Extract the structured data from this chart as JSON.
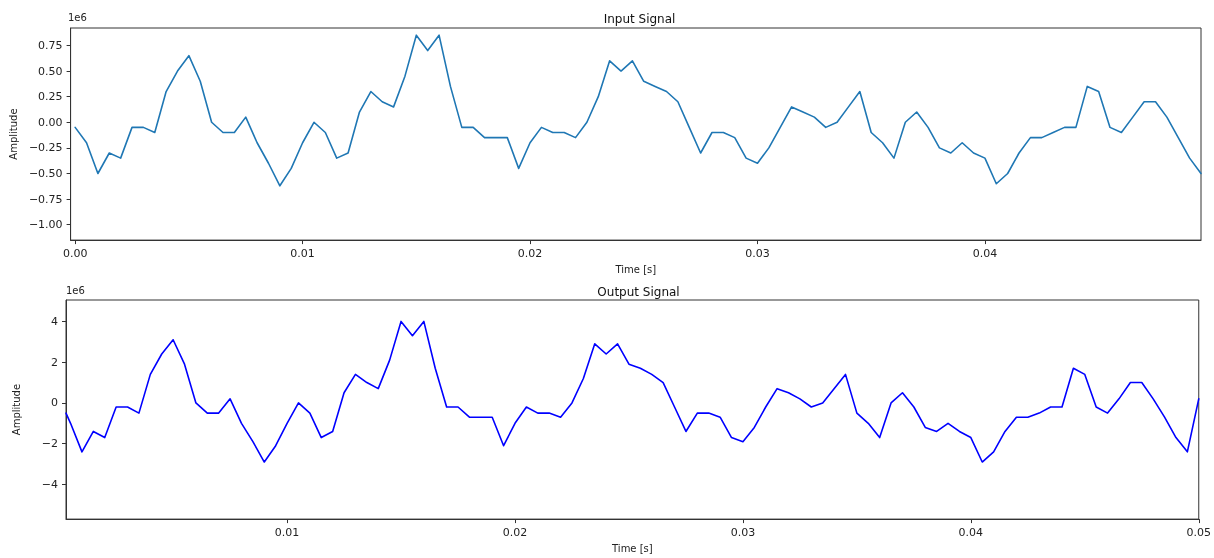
{
  "chart_data": [
    {
      "type": "line",
      "title": "Input Signal",
      "xlabel": "Time [s]",
      "ylabel": "Amplitude",
      "annotations": [
        "1e6"
      ],
      "x": [
        0,
        0.0005,
        0.001,
        0.0015,
        0.002,
        0.0025,
        0.003,
        0.0035,
        0.004,
        0.0045,
        0.005,
        0.0055,
        0.006,
        0.0065,
        0.007,
        0.0075,
        0.008,
        0.0085,
        0.009,
        0.0095,
        0.01,
        0.0105,
        0.011,
        0.0115,
        0.012,
        0.0125,
        0.013,
        0.0135,
        0.014,
        0.0145,
        0.015,
        0.0155,
        0.016,
        0.0165,
        0.017,
        0.0175,
        0.018,
        0.0185,
        0.019,
        0.0195,
        0.02,
        0.0205,
        0.021,
        0.0215,
        0.022,
        0.0225,
        0.023,
        0.0235,
        0.024,
        0.0245,
        0.025,
        0.0255,
        0.026,
        0.0265,
        0.027,
        0.0275,
        0.028,
        0.0285,
        0.029,
        0.0295,
        0.03,
        0.0305,
        0.031,
        0.0315,
        0.032,
        0.0325,
        0.033,
        0.0335,
        0.034,
        0.0345,
        0.035,
        0.0355,
        0.036,
        0.0365,
        0.037,
        0.0375,
        0.038,
        0.0385,
        0.039,
        0.0395,
        0.04,
        0.0405,
        0.041,
        0.0415,
        0.042,
        0.0425,
        0.043,
        0.0435,
        0.044,
        0.0445,
        0.045,
        0.0455,
        0.046,
        0.0465,
        0.047,
        0.0475,
        0.048,
        0.0485,
        0.049,
        0.0495
      ],
      "series": [
        {
          "color": "#1f77b4",
          "values": [
            -0.05,
            -0.2,
            -0.5,
            -0.3,
            -0.35,
            -0.05,
            -0.05,
            -0.1,
            0.3,
            0.5,
            0.65,
            0.4,
            0.0,
            -0.1,
            -0.1,
            0.05,
            -0.2,
            -0.4,
            -0.62,
            -0.45,
            -0.2,
            0.0,
            -0.1,
            -0.35,
            -0.3,
            0.1,
            0.3,
            0.2,
            0.15,
            0.45,
            0.85,
            0.7,
            0.85,
            0.35,
            -0.05,
            -0.05,
            -0.15,
            -0.15,
            -0.15,
            -0.45,
            -0.2,
            -0.05,
            -0.1,
            -0.1,
            -0.15,
            0.0,
            0.25,
            0.6,
            0.5,
            0.6,
            0.4,
            0.35,
            0.3,
            0.2,
            -0.05,
            -0.3,
            -0.1,
            -0.1,
            -0.15,
            -0.35,
            -0.4,
            -0.25,
            -0.05,
            0.15,
            0.1,
            0.05,
            -0.05,
            0.0,
            0.15,
            0.3,
            -0.1,
            -0.2,
            -0.35,
            0.0,
            0.1,
            -0.05,
            -0.25,
            -0.3,
            -0.2,
            -0.3,
            -0.35,
            -0.6,
            -0.5,
            -0.3,
            -0.15,
            -0.15,
            -0.1,
            -0.05,
            -0.05,
            0.35,
            0.3,
            -0.05,
            -0.1,
            0.05,
            0.2,
            0.2,
            0.05,
            -0.15,
            -0.35,
            -0.5
          ]
        }
      ],
      "xlim": [
        -0.0002,
        0.0495
      ],
      "ylim": [
        -1.15,
        0.92
      ],
      "xticks": [
        {
          "value": 0,
          "label": "0.00"
        },
        {
          "value": 0.01,
          "label": "0.01"
        },
        {
          "value": 0.02,
          "label": "0.02"
        },
        {
          "value": 0.03,
          "label": "0.03"
        },
        {
          "value": 0.04,
          "label": "0.04"
        }
      ],
      "yticks": [
        {
          "value": -1,
          "label": "−1.00"
        },
        {
          "value": -0.75,
          "label": "−0.75"
        },
        {
          "value": -0.5,
          "label": "−0.50"
        },
        {
          "value": -0.25,
          "label": "−0.25"
        },
        {
          "value": 0,
          "label": "0.00"
        },
        {
          "value": 0.25,
          "label": "0.25"
        },
        {
          "value": 0.5,
          "label": "0.50"
        },
        {
          "value": 0.75,
          "label": "0.75"
        }
      ]
    },
    {
      "type": "line",
      "title": "Output Signal",
      "xlabel": "Time [s]",
      "ylabel": "Amplitude",
      "annotations": [
        "1e6"
      ],
      "x": [
        0.0003,
        0.0005,
        0.001,
        0.0015,
        0.002,
        0.0025,
        0.003,
        0.0035,
        0.004,
        0.0045,
        0.005,
        0.0055,
        0.006,
        0.0065,
        0.007,
        0.0075,
        0.008,
        0.0085,
        0.009,
        0.0095,
        0.01,
        0.0105,
        0.011,
        0.0115,
        0.012,
        0.0125,
        0.013,
        0.0135,
        0.014,
        0.0145,
        0.015,
        0.0155,
        0.016,
        0.0165,
        0.017,
        0.0175,
        0.018,
        0.0185,
        0.019,
        0.0195,
        0.02,
        0.0205,
        0.021,
        0.0215,
        0.022,
        0.0225,
        0.023,
        0.0235,
        0.024,
        0.0245,
        0.025,
        0.0255,
        0.026,
        0.0265,
        0.027,
        0.0275,
        0.028,
        0.0285,
        0.029,
        0.0295,
        0.03,
        0.0305,
        0.031,
        0.0315,
        0.032,
        0.0325,
        0.033,
        0.0335,
        0.034,
        0.0345,
        0.035,
        0.0355,
        0.036,
        0.0365,
        0.037,
        0.0375,
        0.038,
        0.0385,
        0.039,
        0.0395,
        0.04,
        0.0405,
        0.041,
        0.0415,
        0.042,
        0.0425,
        0.043,
        0.0435,
        0.044,
        0.0445,
        0.045,
        0.0455,
        0.046,
        0.0465,
        0.047,
        0.0475,
        0.048,
        0.0485,
        0.049,
        0.0495,
        0.05
      ],
      "series": [
        {
          "color": "#0000ff",
          "values": [
            -0.5,
            -1.0,
            -2.4,
            -1.4,
            -1.7,
            -0.2,
            -0.2,
            -0.5,
            1.4,
            2.4,
            3.1,
            1.9,
            0.0,
            -0.5,
            -0.5,
            0.2,
            -1.0,
            -1.9,
            -2.9,
            -2.1,
            -1.0,
            0.0,
            -0.5,
            -1.7,
            -1.4,
            0.5,
            1.4,
            1.0,
            0.7,
            2.1,
            4.0,
            3.3,
            4.0,
            1.7,
            -0.2,
            -0.2,
            -0.7,
            -0.7,
            -0.7,
            -2.1,
            -1.0,
            -0.2,
            -0.5,
            -0.5,
            -0.7,
            0.0,
            1.2,
            2.9,
            2.4,
            2.9,
            1.9,
            1.7,
            1.4,
            1.0,
            -0.2,
            -1.4,
            -0.5,
            -0.5,
            -0.7,
            -1.7,
            -1.9,
            -1.2,
            -0.2,
            0.7,
            0.5,
            0.2,
            -0.2,
            0.0,
            0.7,
            1.4,
            -0.5,
            -1.0,
            -1.7,
            0.0,
            0.5,
            -0.2,
            -1.2,
            -1.4,
            -1.0,
            -1.4,
            -1.7,
            -2.9,
            -2.4,
            -1.4,
            -0.7,
            -0.7,
            -0.5,
            -0.2,
            -0.2,
            1.7,
            1.4,
            -0.2,
            -0.5,
            0.2,
            1.0,
            1.0,
            0.2,
            -0.7,
            -1.7,
            -2.4,
            0.2
          ]
        }
      ],
      "xlim": [
        0.0003,
        0.05
      ],
      "ylim": [
        -5.7,
        5.05
      ],
      "xticks": [
        0.01,
        0.02,
        0.03,
        0.04,
        0.05
      ],
      "yticks": [
        {
          "value": -4,
          "label": "−4"
        },
        {
          "value": -2,
          "label": "−2"
        },
        {
          "value": 0,
          "label": "0"
        },
        {
          "value": 2,
          "label": "2"
        },
        {
          "value": 4,
          "label": "4"
        }
      ]
    }
  ]
}
